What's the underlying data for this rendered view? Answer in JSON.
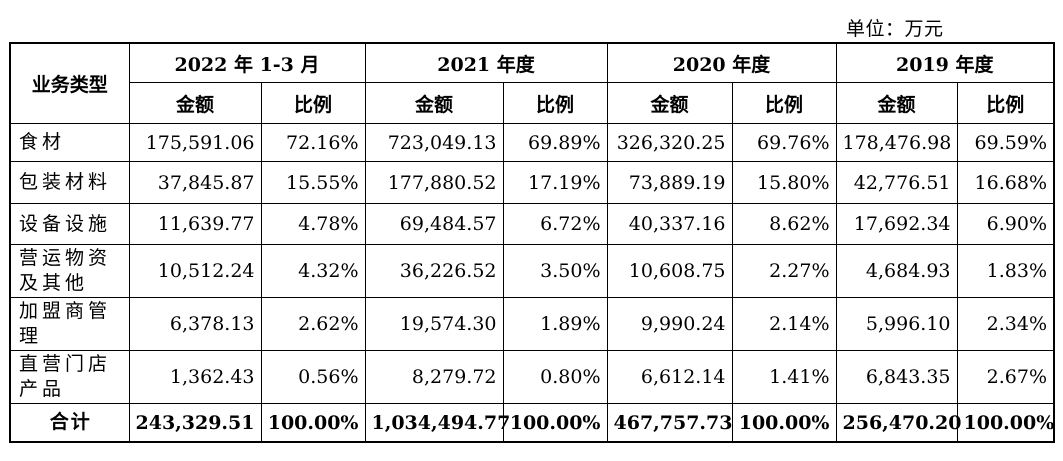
{
  "unit_label": "单位：万元",
  "table": {
    "category_header": "业务类型",
    "periods": [
      "2022 年 1-3 月",
      "2021 年度",
      "2020 年度",
      "2019 年度"
    ],
    "amount_label": "金额",
    "ratio_label": "比例",
    "rows": [
      {
        "category": "食材",
        "cells": [
          "175,591.06",
          "72.16%",
          "723,049.13",
          "69.89%",
          "326,320.25",
          "69.76%",
          "178,476.98",
          "69.59%"
        ]
      },
      {
        "category": "包装材料",
        "cells": [
          "37,845.87",
          "15.55%",
          "177,880.52",
          "17.19%",
          "73,889.19",
          "15.80%",
          "42,776.51",
          "16.68%"
        ]
      },
      {
        "category": "设备设施",
        "cells": [
          "11,639.77",
          "4.78%",
          "69,484.57",
          "6.72%",
          "40,337.16",
          "8.62%",
          "17,692.34",
          "6.90%"
        ]
      },
      {
        "category": "营运物资及其他",
        "cells": [
          "10,512.24",
          "4.32%",
          "36,226.52",
          "3.50%",
          "10,608.75",
          "2.27%",
          "4,684.93",
          "1.83%"
        ]
      },
      {
        "category": "加盟商管理",
        "cells": [
          "6,378.13",
          "2.62%",
          "19,574.30",
          "1.89%",
          "9,990.24",
          "2.14%",
          "5,996.10",
          "2.34%"
        ]
      },
      {
        "category": "直营门店产品",
        "cells": [
          "1,362.43",
          "0.56%",
          "8,279.72",
          "0.80%",
          "6,612.14",
          "1.41%",
          "6,843.35",
          "2.67%"
        ]
      }
    ],
    "total": {
      "category": "合计",
      "cells": [
        "243,329.51",
        "100.00%",
        "1,034,494.77",
        "100.00%",
        "467,757.73",
        "100.00%",
        "256,470.20",
        "100.00%"
      ]
    }
  }
}
